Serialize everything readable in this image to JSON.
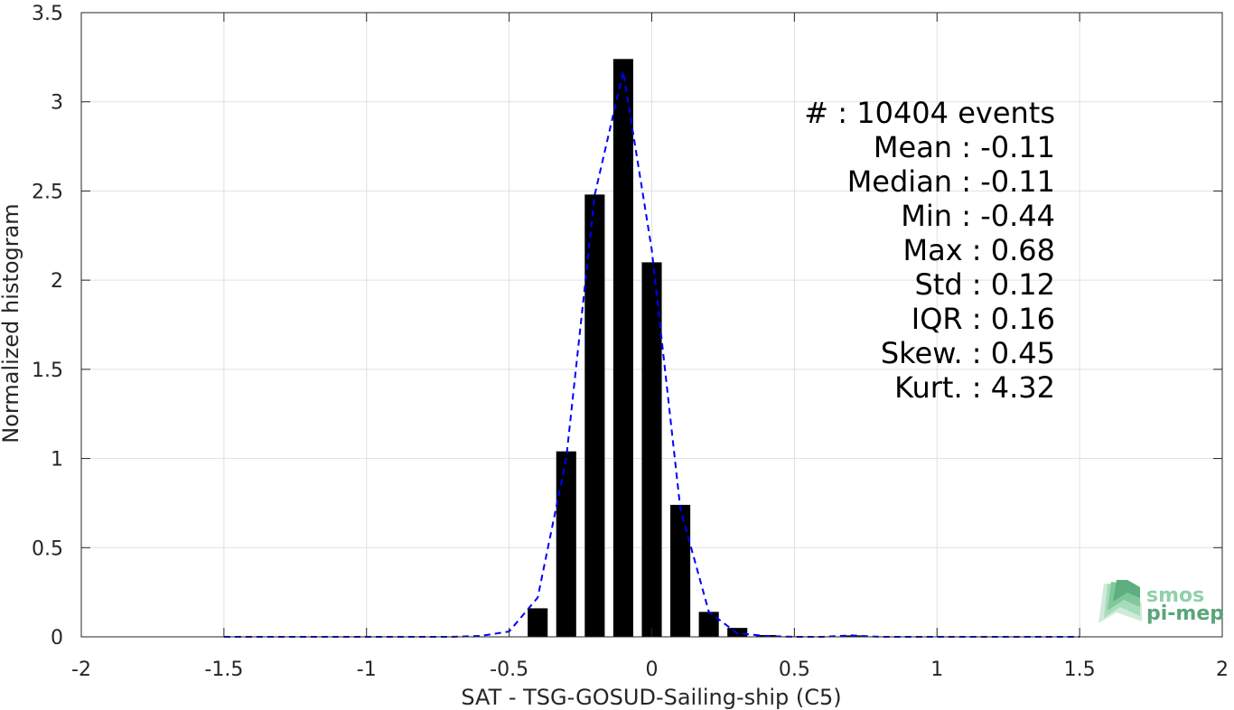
{
  "chart_data": {
    "type": "bar",
    "xlabel": "SAT - TSG-GOSUD-Sailing-ship (C5)",
    "ylabel": "Normalized histogram",
    "xlim": [
      -2,
      2
    ],
    "ylim": [
      0,
      3.5
    ],
    "grid": true,
    "x_ticks": [
      "-2",
      "-1.5",
      "-1",
      "-0.5",
      "0",
      "0.5",
      "1",
      "1.5",
      "2"
    ],
    "y_ticks": [
      "0",
      "0.5",
      "1",
      "1.5",
      "2",
      "2.5",
      "3",
      "3.5"
    ],
    "bar_width": 0.07,
    "bars": {
      "x": [
        -0.4,
        -0.3,
        -0.2,
        -0.1,
        0.0,
        0.1,
        0.2,
        0.3,
        0.4,
        0.5,
        0.6,
        0.7
      ],
      "values": [
        0.16,
        1.04,
        2.48,
        3.24,
        2.1,
        0.74,
        0.14,
        0.05,
        0.01,
        0.003,
        0.002,
        0.008
      ],
      "color": "#000000"
    },
    "fit_curve": {
      "style": "dashed",
      "color": "#0000ff",
      "x": [
        -1.5,
        -1.4,
        -1.3,
        -1.2,
        -1.1,
        -1.0,
        -0.9,
        -0.8,
        -0.7,
        -0.6,
        -0.5,
        -0.4,
        -0.3,
        -0.2,
        -0.1,
        0.0,
        0.1,
        0.2,
        0.3,
        0.4,
        0.5,
        0.6,
        0.7,
        0.8,
        0.9,
        1.0,
        1.1,
        1.2,
        1.3,
        1.4,
        1.5
      ],
      "y": [
        0,
        0,
        0,
        0,
        0,
        0,
        0,
        0,
        0,
        0.005,
        0.03,
        0.22,
        1.0,
        2.48,
        3.17,
        2.17,
        0.72,
        0.14,
        0.02,
        0.005,
        0,
        0,
        0.008,
        0,
        0,
        0,
        0,
        0,
        0,
        0,
        0
      ]
    },
    "annotations": [
      "#  : 10404 events",
      "Mean : -0.11",
      "Median : -0.11",
      "Min : -0.44",
      "Max : 0.68",
      "Std : 0.12",
      "IQR : 0.16",
      "Skew. : 0.45",
      "Kurt. : 4.32"
    ]
  },
  "logo": {
    "line1": "smos",
    "line2": "pi-mep",
    "color_light": "#8fd1a8",
    "color_dark": "#5aa57a"
  }
}
